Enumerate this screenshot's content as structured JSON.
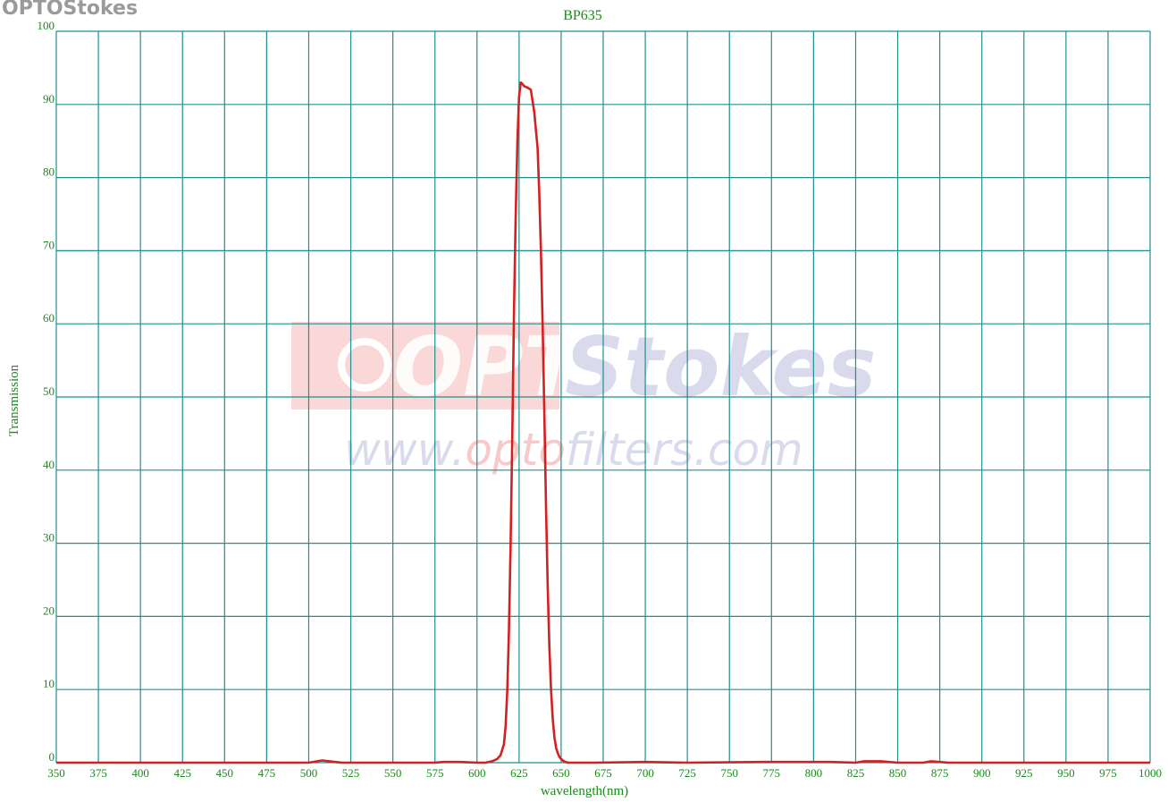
{
  "brand_text": "OPTOStokes",
  "watermark": {
    "logo_left": "OPTO",
    "logo_right": "Stokes",
    "url_parts": [
      "www.",
      "opto",
      "filters.com"
    ]
  },
  "colors": {
    "grid": "#1f8f8f",
    "text": "#1a8a1a",
    "curve": "#d42020",
    "watermark_red": "#f5b8b8",
    "watermark_blue": "#cdd0e8"
  },
  "chart_data": {
    "type": "line",
    "title": "BP635",
    "xlabel": "wavelength(nm)",
    "ylabel": "Transmission",
    "xlim": [
      350,
      1000
    ],
    "ylim": [
      0,
      100
    ],
    "x_ticks": [
      350,
      375,
      400,
      425,
      450,
      475,
      500,
      525,
      550,
      575,
      600,
      625,
      650,
      675,
      700,
      725,
      750,
      775,
      800,
      825,
      850,
      875,
      900,
      925,
      950,
      975,
      1000
    ],
    "y_ticks": [
      0,
      10,
      20,
      30,
      40,
      50,
      60,
      70,
      80,
      90,
      100
    ],
    "grid": true,
    "legend": "none",
    "series": [
      {
        "x": [
          350,
          500,
          508,
          512,
          520,
          575,
          580,
          590,
          600,
          605,
          609,
          612,
          614,
          616,
          617,
          618,
          619,
          620,
          621,
          622,
          623,
          624,
          625,
          626,
          627,
          628,
          629,
          630,
          632,
          634,
          636,
          637,
          638,
          639,
          640,
          641,
          642,
          643,
          644,
          645,
          646,
          647,
          648,
          649,
          650,
          651,
          652,
          654,
          656,
          660,
          670,
          700,
          725,
          770,
          810,
          825,
          830,
          840,
          850,
          865,
          870,
          880,
          900,
          1000
        ],
        "y": [
          0,
          0,
          0.3,
          0.2,
          0,
          0,
          0.1,
          0.1,
          0,
          0,
          0.2,
          0.5,
          1,
          2.5,
          5,
          10,
          18,
          30,
          45,
          62,
          75,
          85,
          91,
          93,
          92.8,
          92.5,
          92.4,
          92.3,
          92,
          89,
          84,
          78,
          70,
          60,
          48,
          35,
          24,
          16,
          10,
          6,
          3.5,
          2,
          1.3,
          0.8,
          0.5,
          0.3,
          0.15,
          0,
          0,
          0,
          0,
          0.1,
          0,
          0.1,
          0.1,
          0,
          0.2,
          0.2,
          0,
          0,
          0.2,
          0,
          0,
          0
        ]
      }
    ]
  }
}
